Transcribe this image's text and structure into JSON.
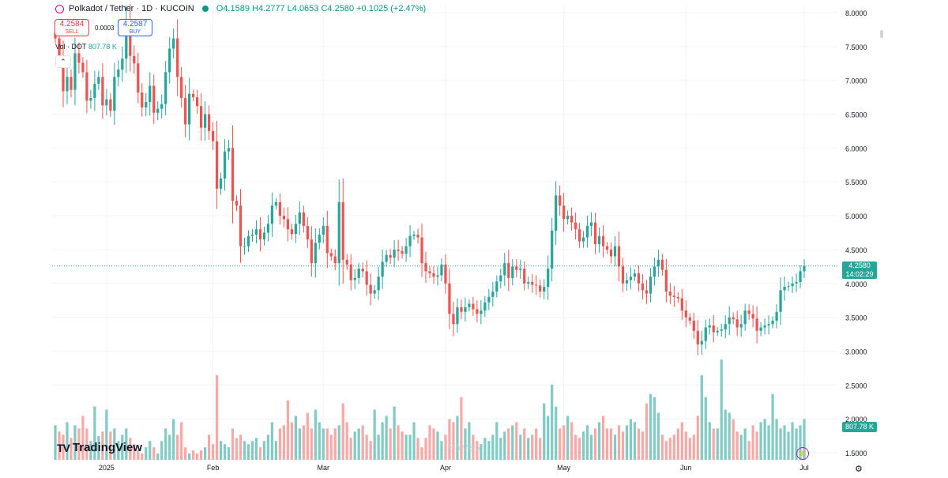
{
  "header": {
    "symbol": "Polkadot / Tether · 1D · KUCOIN",
    "ohlc": "O4.1589 H4.2777 L4.0653 C4.2580 +0.1025 (+2.47%)"
  },
  "trade": {
    "sell_price": "4.2584",
    "sell_label": "SELL",
    "buy_price": "4.2587",
    "buy_label": "BUY",
    "spread": "0.0003"
  },
  "volume_legend": {
    "label": "Vol · DOT",
    "value": "807.78 K"
  },
  "last_price": {
    "value": "4.2580",
    "countdown": "14:02:29"
  },
  "volume_badge": "807.78 K",
  "branding": {
    "logo": "TradingView",
    "watermark": "Eterex"
  },
  "colors": {
    "up": "#26a69a",
    "down": "#ef5350",
    "vol_up": "#80cbc4",
    "vol_down": "#f7a9a7"
  },
  "chart_data": {
    "type": "candlestick",
    "ylim": [
      1.5,
      8.0
    ],
    "y_ticks": [
      "8.0000",
      "7.5000",
      "7.0000",
      "6.5000",
      "6.0000",
      "5.5000",
      "5.0000",
      "4.5000",
      "4.0000",
      "3.5000",
      "3.0000",
      "2.5000",
      "2.0000",
      "1.5000"
    ],
    "x_ticks": [
      {
        "label": "2025",
        "idx": 13
      },
      {
        "label": "Feb",
        "idx": 40
      },
      {
        "label": "Mar",
        "idx": 68
      },
      {
        "label": "Apr",
        "idx": 99
      },
      {
        "label": "May",
        "idx": 129
      },
      {
        "label": "Jun",
        "idx": 160
      },
      {
        "label": "Jul",
        "idx": 190
      }
    ],
    "close": [
      7.62,
      7.35,
      6.84,
      7.05,
      6.86,
      7.4,
      7.26,
      7.12,
      6.7,
      6.74,
      6.95,
      7.05,
      6.63,
      6.72,
      6.55,
      7.05,
      7.16,
      7.32,
      7.9,
      7.36,
      7.25,
      6.82,
      6.6,
      6.68,
      6.92,
      6.52,
      6.58,
      6.65,
      7.12,
      7.47,
      7.62,
      7.05,
      6.74,
      6.35,
      6.8,
      6.75,
      6.62,
      6.3,
      6.5,
      6.25,
      6.1,
      5.4,
      5.55,
      5.95,
      6.0,
      5.22,
      5.15,
      4.55,
      4.55,
      4.7,
      4.72,
      4.8,
      4.65,
      4.75,
      4.88,
      5.15,
      5.2,
      5.0,
      4.95,
      4.8,
      4.73,
      4.88,
      5.05,
      4.85,
      4.65,
      4.3,
      4.6,
      4.72,
      4.85,
      4.45,
      4.4,
      4.3,
      5.2,
      4.35,
      4.28,
      4.05,
      4.08,
      4.22,
      4.18,
      3.98,
      3.85,
      3.9,
      4.1,
      4.32,
      4.42,
      4.38,
      4.5,
      4.48,
      4.44,
      4.55,
      4.7,
      4.72,
      4.68,
      4.3,
      4.18,
      4.15,
      4.1,
      4.12,
      4.28,
      4.0,
      3.55,
      3.4,
      3.65,
      3.58,
      3.65,
      3.7,
      3.62,
      3.55,
      3.6,
      3.72,
      3.8,
      3.88,
      4.03,
      4.12,
      4.3,
      4.08,
      4.25,
      4.2,
      4.22,
      4.0,
      4.02,
      3.98,
      3.97,
      3.88,
      3.95,
      4.22,
      4.78,
      5.3,
      5.15,
      4.95,
      5.0,
      4.9,
      4.8,
      4.62,
      4.68,
      4.85,
      4.9,
      4.58,
      4.7,
      4.55,
      4.5,
      4.4,
      4.55,
      4.25,
      4.0,
      4.05,
      4.1,
      4.15,
      4.0,
      3.9,
      3.85,
      4.1,
      4.25,
      4.35,
      4.2,
      3.88,
      3.82,
      3.8,
      3.78,
      3.6,
      3.5,
      3.45,
      3.3,
      3.1,
      3.15,
      3.35,
      3.38,
      3.28,
      3.3,
      3.32,
      3.4,
      3.5,
      3.47,
      3.35,
      3.4,
      3.6,
      3.55,
      3.48,
      3.3,
      3.35,
      3.38,
      3.4,
      3.45,
      3.58,
      3.9,
      3.95,
      3.96,
      4.0,
      4.02,
      4.18,
      4.26
    ]
  },
  "volume_data": {
    "max_display": 2.85,
    "values": [
      2.05,
      1.95,
      1.9,
      2.1,
      1.85,
      2.05,
      2.0,
      2.2,
      2.0,
      1.8,
      2.35,
      1.88,
      1.95,
      2.3,
      1.95,
      2.0,
      1.8,
      1.9,
      2.0,
      1.85,
      1.75,
      1.65,
      1.6,
      1.7,
      1.8,
      1.7,
      1.6,
      1.8,
      2.0,
      1.9,
      2.15,
      1.9,
      2.1,
      1.7,
      1.6,
      1.65,
      1.6,
      1.65,
      1.7,
      1.9,
      1.75,
      2.85,
      1.8,
      1.75,
      1.7,
      2.0,
      1.85,
      1.9,
      1.8,
      1.75,
      1.8,
      1.85,
      1.7,
      1.8,
      1.9,
      2.1,
      1.8,
      2.0,
      2.05,
      2.45,
      2.1,
      2.2,
      2.0,
      2.05,
      2.25,
      2.0,
      2.3,
      2.1,
      2.0,
      2.0,
      1.9,
      2.0,
      2.05,
      2.4,
      2.1,
      1.85,
      1.95,
      2.0,
      2.05,
      1.9,
      1.8,
      2.3,
      1.9,
      2.1,
      2.2,
      2.0,
      2.35,
      2.05,
      1.95,
      1.9,
      1.9,
      2.1,
      1.85,
      1.7,
      1.85,
      2.05,
      2.0,
      1.95,
      1.8,
      1.9,
      2.15,
      2.1,
      2.2,
      2.5,
      2.0,
      2.1,
      1.9,
      1.8,
      1.75,
      1.85,
      1.8,
      1.9,
      2.1,
      1.85,
      1.95,
      2.0,
      2.05,
      2.1,
      1.9,
      2.0,
      1.85,
      1.9,
      2.0,
      1.85,
      2.4,
      2.2,
      2.7,
      2.35,
      2.0,
      2.05,
      2.2,
      2.1,
      1.9,
      1.85,
      1.95,
      2.05,
      1.9,
      2.0,
      2.1,
      2.2,
      2.0,
      2.0,
      1.9,
      2.05,
      1.95,
      2.05,
      2.15,
      2.1,
      2.0,
      1.95,
      2.4,
      2.55,
      2.5,
      2.25,
      1.9,
      1.8,
      1.85,
      1.9,
      2.0,
      2.1,
      1.95,
      1.85,
      1.9,
      2.2,
      2.85,
      2.5,
      2.1,
      2.0,
      2.0,
      3.1,
      2.3,
      2.25,
      2.15,
      1.95,
      1.9,
      2.0,
      1.8,
      2.05,
      1.95,
      2.1,
      2.15,
      2.05,
      2.55,
      2.15,
      2.0,
      2.05,
      1.95,
      2.1,
      2.0,
      2.05,
      2.15,
      2.65,
      2.0
    ]
  }
}
